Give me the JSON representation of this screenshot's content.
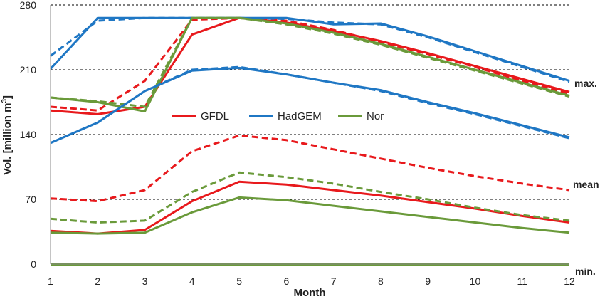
{
  "chart_data": {
    "type": "line",
    "title": "",
    "xlabel": "Month",
    "ylabel_main": "Vol. [million m",
    "ylabel_sup": "3",
    "ylabel_close": "]",
    "x": [
      1,
      2,
      3,
      4,
      5,
      6,
      7,
      8,
      9,
      10,
      11,
      12
    ],
    "x_ticks": [
      "1",
      "2",
      "3",
      "4",
      "5",
      "6",
      "7",
      "8",
      "9",
      "10",
      "11",
      "12"
    ],
    "y_ticks": [
      "0",
      "70",
      "140",
      "210",
      "280"
    ],
    "ylim": [
      0,
      280
    ],
    "grid": "dashed horizontal at 70, 140, 210, 280",
    "legend": {
      "placement": "center",
      "entries": [
        {
          "label": "GFDL",
          "color": "#e8191c"
        },
        {
          "label": "HadGEM",
          "color": "#1f77c4"
        },
        {
          "label": "Nor",
          "color": "#6a9a3a"
        }
      ]
    },
    "annotations": [
      "max.",
      "mean",
      "min."
    ],
    "series": [
      {
        "model": "GFDL",
        "statistic": "max.",
        "style": "solid",
        "color": "#e8191c",
        "values": [
          166,
          162,
          170,
          248,
          266,
          261,
          252,
          241,
          228,
          214,
          200,
          186
        ]
      },
      {
        "model": "GFDL",
        "statistic": "max.",
        "style": "dashed",
        "color": "#e8191c",
        "values": [
          170,
          166,
          198,
          264,
          266,
          263,
          253,
          240,
          227,
          213,
          198,
          184
        ]
      },
      {
        "model": "HadGEM",
        "statistic": "max.",
        "style": "solid",
        "color": "#1f77c4",
        "values": [
          211,
          266,
          266,
          266,
          266,
          266,
          259,
          260,
          246,
          230,
          214,
          198
        ]
      },
      {
        "model": "HadGEM",
        "statistic": "max.",
        "style": "dashed",
        "color": "#1f77c4",
        "values": [
          225,
          263,
          266,
          266,
          266,
          265,
          261,
          259,
          245,
          229,
          213,
          197
        ]
      },
      {
        "model": "Nor",
        "statistic": "max.",
        "style": "solid",
        "color": "#6a9a3a",
        "values": [
          180,
          175,
          165,
          266,
          266,
          260,
          250,
          238,
          224,
          210,
          196,
          182
        ]
      },
      {
        "model": "Nor",
        "statistic": "max.",
        "style": "dashed",
        "color": "#6a9a3a",
        "values": [
          180,
          176,
          170,
          266,
          266,
          259,
          249,
          237,
          223,
          209,
          195,
          181
        ]
      },
      {
        "model": "HadGEM",
        "statistic": "max.",
        "style": "solid",
        "color": "#1f77c4",
        "values": [
          131,
          153,
          187,
          209,
          212,
          205,
          196,
          188,
          175,
          163,
          150,
          137
        ]
      },
      {
        "model": "HadGEM",
        "statistic": "max.",
        "style": "dashed",
        "color": "#1f77c4",
        "values": [
          131,
          153,
          187,
          210,
          213,
          205,
          196,
          187,
          174,
          162,
          149,
          136
        ]
      },
      {
        "model": "GFDL",
        "statistic": "mean",
        "style": "solid",
        "color": "#e8191c",
        "values": [
          36,
          33,
          37,
          68,
          89,
          86,
          80,
          74,
          67,
          60,
          52,
          45
        ]
      },
      {
        "model": "GFDL",
        "statistic": "mean",
        "style": "dashed",
        "color": "#e8191c",
        "values": [
          71,
          68,
          80,
          122,
          139,
          134,
          124,
          114,
          104,
          95,
          87,
          80
        ]
      },
      {
        "model": "Nor",
        "statistic": "mean",
        "style": "solid",
        "color": "#6a9a3a",
        "values": [
          34,
          33,
          34,
          56,
          72,
          69,
          63,
          57,
          51,
          45,
          39,
          34
        ]
      },
      {
        "model": "Nor",
        "statistic": "mean",
        "style": "dashed",
        "color": "#6a9a3a",
        "values": [
          49,
          45,
          47,
          78,
          99,
          94,
          87,
          78,
          70,
          61,
          53,
          47
        ]
      },
      {
        "model": "Nor",
        "statistic": "min.",
        "style": "solid",
        "color": "#6a9a3a",
        "values": [
          0,
          0,
          0,
          0,
          0,
          0,
          0,
          0,
          0,
          0,
          0,
          0
        ]
      }
    ]
  }
}
